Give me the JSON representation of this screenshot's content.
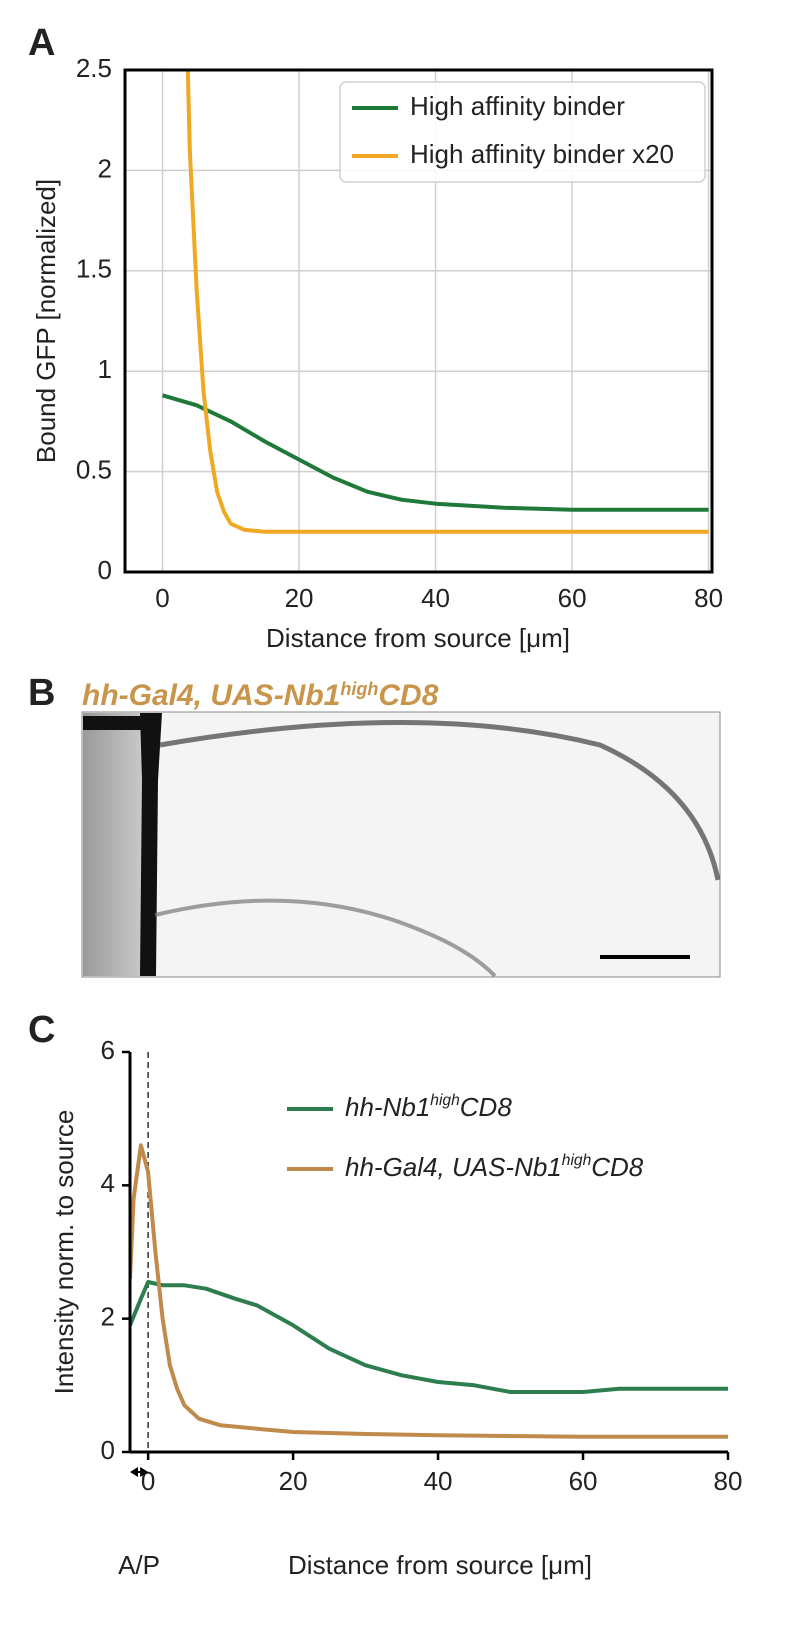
{
  "chart_data": [
    {
      "type": "line",
      "label": "A",
      "x_label": "Distance from source [μm]",
      "y_label": "Bound GFP [normalized]",
      "xlim": [
        -5.5,
        80.5
      ],
      "ylim": [
        0,
        2.5
      ],
      "xticks": [
        0,
        20,
        40,
        60,
        80
      ],
      "yticks": [
        0,
        0.5,
        1,
        1.5,
        2,
        2.5
      ],
      "grid": true,
      "legend": "upper right",
      "series": [
        {
          "name": "High affinity binder",
          "color": "#1f7a3a",
          "x": [
            0,
            5,
            10,
            15,
            20,
            25,
            30,
            35,
            40,
            50,
            60,
            70,
            80
          ],
          "values": [
            0.88,
            0.83,
            0.75,
            0.65,
            0.56,
            0.47,
            0.4,
            0.36,
            0.34,
            0.32,
            0.31,
            0.31,
            0.31
          ]
        },
        {
          "name": "High affinity binder x20",
          "color": "#f0a925",
          "x": [
            3.7,
            4,
            5,
            6,
            7,
            8,
            9,
            10,
            12,
            15,
            20,
            40,
            60,
            80
          ],
          "values": [
            2.5,
            2.1,
            1.4,
            0.9,
            0.6,
            0.4,
            0.3,
            0.24,
            0.21,
            0.2,
            0.2,
            0.2,
            0.2,
            0.2
          ]
        }
      ]
    },
    {
      "type": "line",
      "label": "C",
      "x_label": "Distance from source [μm]",
      "y_label": "Intensity norm. to source",
      "xlim": [
        -2.5,
        80
      ],
      "ylim": [
        0,
        6
      ],
      "xticks": [
        0,
        20,
        40,
        60,
        80
      ],
      "yticks": [
        0,
        2,
        4,
        6
      ],
      "grid": false,
      "legend": "upper right",
      "vline": 0,
      "annotation": "A/P",
      "series": [
        {
          "name": [
            "hh-Nb1",
            "high",
            "CD8"
          ],
          "color": "#2e7d4f",
          "x": [
            -2.5,
            -1,
            0,
            2,
            5,
            8,
            12,
            15,
            20,
            25,
            30,
            35,
            40,
            45,
            50,
            55,
            60,
            65,
            70,
            75,
            80
          ],
          "values": [
            1.9,
            2.3,
            2.55,
            2.5,
            2.5,
            2.45,
            2.3,
            2.2,
            1.9,
            1.55,
            1.3,
            1.15,
            1.05,
            1.0,
            0.9,
            0.9,
            0.9,
            0.95,
            0.95,
            0.95,
            0.95
          ]
        },
        {
          "name": [
            "hh-Gal4, UAS-Nb1",
            "high",
            "CD8"
          ],
          "color": "#c08a4a",
          "x": [
            -2.5,
            -2,
            -1,
            0,
            1,
            2,
            3,
            4,
            5,
            7,
            10,
            15,
            20,
            30,
            40,
            60,
            80
          ],
          "values": [
            2.6,
            3.8,
            4.6,
            4.2,
            3.0,
            2.0,
            1.3,
            0.95,
            0.7,
            0.5,
            0.4,
            0.35,
            0.3,
            0.27,
            0.25,
            0.23,
            0.23
          ]
        }
      ]
    }
  ],
  "image_panel": {
    "label": "B",
    "title": [
      "hh-Gal4, UAS-Nb1",
      "high",
      "CD8"
    ]
  }
}
